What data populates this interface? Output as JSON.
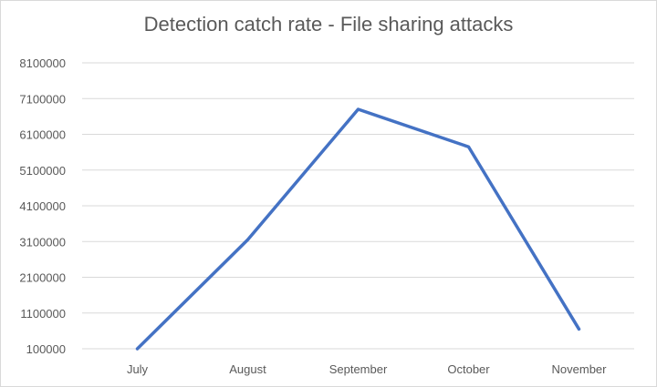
{
  "chart_data": {
    "type": "line",
    "title": "Detection catch rate - File sharing attacks",
    "xlabel": "",
    "ylabel": "",
    "categories": [
      "July",
      "August",
      "September",
      "October",
      "November"
    ],
    "series": [
      {
        "values": [
          100000,
          3150000,
          6800000,
          5750000,
          650000
        ]
      }
    ],
    "y_ticks": [
      100000,
      1100000,
      2100000,
      3100000,
      4100000,
      5100000,
      6100000,
      7100000,
      8100000
    ],
    "ylim": [
      100000,
      8100000
    ],
    "grid": true,
    "legend": "none",
    "line_color": "#4472C4",
    "grid_color": "#d9d9d9",
    "text_color": "#595959"
  }
}
